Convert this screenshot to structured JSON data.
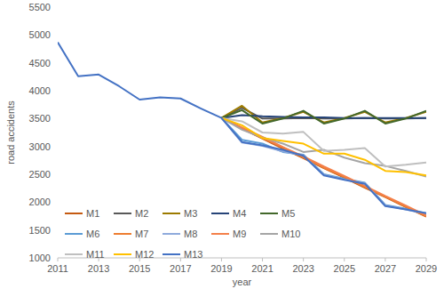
{
  "chart_data": {
    "type": "line",
    "x_label": "year",
    "y_label": "road accidents",
    "x": [
      2011,
      2012,
      2013,
      2014,
      2015,
      2016,
      2017,
      2018,
      2019,
      2020,
      2021,
      2022,
      2023,
      2024,
      2025,
      2026,
      2027,
      2028,
      2029
    ],
    "xlim": [
      2011,
      2029
    ],
    "xticks": [
      2011,
      2013,
      2015,
      2017,
      2019,
      2021,
      2023,
      2025,
      2027,
      2029
    ],
    "ylim": [
      1000,
      5500
    ],
    "yticks": [
      1000,
      1500,
      2000,
      2500,
      3000,
      3500,
      4000,
      4500,
      5000,
      5500
    ],
    "grid": false,
    "legend": "lower left",
    "series": [
      {
        "name": "M1",
        "color": "#c55a11",
        "values": [
          null,
          null,
          null,
          null,
          null,
          null,
          null,
          null,
          3510,
          3320,
          3140,
          2960,
          2790,
          2610,
          2440,
          2260,
          2090,
          1910,
          1740
        ]
      },
      {
        "name": "M2",
        "color": "#595959",
        "values": [
          null,
          null,
          null,
          null,
          null,
          null,
          null,
          null,
          3510,
          3690,
          3500,
          3500,
          3510,
          3500,
          3500,
          3510,
          3500,
          3500,
          3510
        ]
      },
      {
        "name": "M3",
        "color": "#9c7a00",
        "values": [
          null,
          null,
          null,
          null,
          null,
          null,
          null,
          null,
          3510,
          3730,
          3430,
          3510,
          3620,
          3430,
          3510,
          3620,
          3430,
          3510,
          3620
        ]
      },
      {
        "name": "M4",
        "color": "#264478",
        "values": [
          null,
          null,
          null,
          null,
          null,
          null,
          null,
          null,
          3510,
          3560,
          3540,
          3530,
          3520,
          3520,
          3510,
          3510,
          3510,
          3510,
          3510
        ]
      },
      {
        "name": "M5",
        "color": "#43682b",
        "values": [
          null,
          null,
          null,
          null,
          null,
          null,
          null,
          null,
          3510,
          3650,
          3410,
          3500,
          3640,
          3410,
          3500,
          3640,
          3410,
          3500,
          3640
        ]
      },
      {
        "name": "M6",
        "color": "#5b9bd5",
        "values": [
          null,
          null,
          null,
          null,
          null,
          null,
          null,
          null,
          3510,
          3120,
          3050,
          2900,
          2850,
          2500,
          2420,
          2350,
          1950,
          1880,
          1800
        ]
      },
      {
        "name": "M7",
        "color": "#ed7d31",
        "values": [
          null,
          null,
          null,
          null,
          null,
          null,
          null,
          null,
          3510,
          3330,
          3150,
          2980,
          2800,
          2620,
          2450,
          2270,
          2100,
          1920,
          1750
        ]
      },
      {
        "name": "M8",
        "color": "#8faadc",
        "values": [
          null,
          null,
          null,
          null,
          null,
          null,
          null,
          null,
          3510,
          3070,
          3010,
          2910,
          2840,
          2490,
          2410,
          2340,
          1940,
          1870,
          1790
        ]
      },
      {
        "name": "M9",
        "color": "#f4804a",
        "values": [
          null,
          null,
          null,
          null,
          null,
          null,
          null,
          null,
          3510,
          3340,
          3170,
          2990,
          2820,
          2640,
          2470,
          2290,
          2110,
          1940,
          1760
        ]
      },
      {
        "name": "M10",
        "color": "#a5a5a5",
        "values": [
          null,
          null,
          null,
          null,
          null,
          null,
          null,
          null,
          3510,
          3300,
          3160,
          3050,
          2900,
          2940,
          2800,
          2700,
          2650,
          2560,
          2460
        ]
      },
      {
        "name": "M11",
        "color": "#bfbfbf",
        "values": [
          null,
          null,
          null,
          null,
          null,
          null,
          null,
          null,
          3510,
          3450,
          3250,
          3230,
          3260,
          2920,
          2940,
          2970,
          2640,
          2670,
          2710
        ]
      },
      {
        "name": "M12",
        "color": "#ffc000",
        "values": [
          null,
          null,
          null,
          null,
          null,
          null,
          null,
          null,
          3510,
          3380,
          3150,
          3100,
          3050,
          2870,
          2870,
          2760,
          2560,
          2540,
          2480
        ]
      },
      {
        "name": "M13",
        "color": "#4472c4",
        "values": [
          4870,
          4260,
          4290,
          4080,
          3840,
          3880,
          3860,
          3680,
          3510,
          3080,
          3020,
          2940,
          2830,
          2480,
          2400,
          2330,
          1930,
          1870,
          1800
        ]
      }
    ]
  }
}
